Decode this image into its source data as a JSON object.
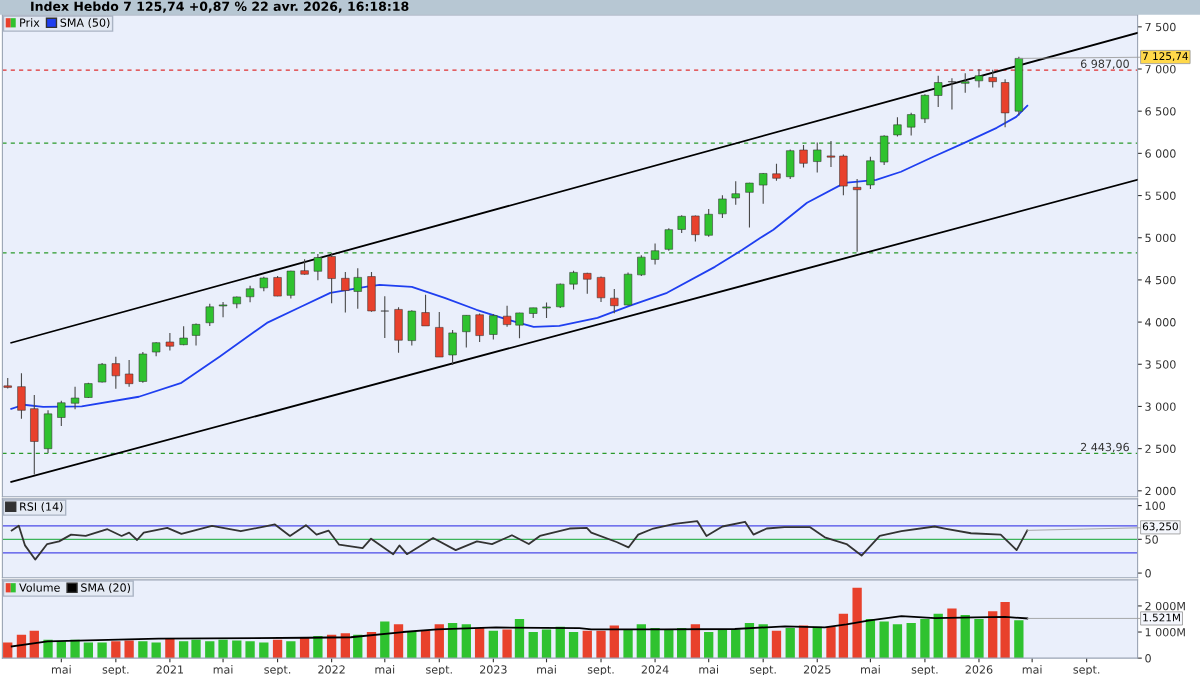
{
  "chart_data": [
    {
      "type": "candlestick",
      "title": "Index Hebdo 7 125,74 +0,87 % 22 avr. 2026, 16:18:18",
      "series": [
        {
          "name": "Prix",
          "type": "candlestick",
          "x": [
            "2020-01",
            "2020-02",
            "2020-03",
            "2020-04",
            "2020-05",
            "2020-06",
            "2020-07",
            "2020-08",
            "2020-09",
            "2020-10",
            "2020-11",
            "2020-12",
            "2021-01",
            "2021-02",
            "2021-03",
            "2021-04",
            "2021-05",
            "2021-06",
            "2021-07",
            "2021-08",
            "2021-09",
            "2021-10",
            "2021-11",
            "2021-12",
            "2022-01",
            "2022-02",
            "2022-03",
            "2022-04",
            "2022-05",
            "2022-06",
            "2022-07",
            "2022-08",
            "2022-09",
            "2022-10",
            "2022-11",
            "2022-12",
            "2023-01",
            "2023-02",
            "2023-03",
            "2023-04",
            "2023-05",
            "2023-06",
            "2023-07",
            "2023-08",
            "2023-09",
            "2023-10",
            "2023-11",
            "2023-12",
            "2024-01",
            "2024-02",
            "2024-03",
            "2024-04",
            "2024-05",
            "2024-06",
            "2024-07",
            "2024-08",
            "2024-09",
            "2024-10",
            "2024-11",
            "2024-12",
            "2025-01",
            "2025-02",
            "2025-03",
            "2025-04",
            "2025-05",
            "2025-06",
            "2025-07",
            "2025-08",
            "2025-09",
            "2025-10",
            "2025-11",
            "2025-12",
            "2026-01",
            "2026-02",
            "2026-03",
            "2026-04"
          ],
          "ohlc": [
            [
              3244,
              3337,
              3214,
              3226
            ],
            [
              3235,
              3394,
              2855,
              2954
            ],
            [
              2974,
              3137,
              2192,
              2585
            ],
            [
              2499,
              2955,
              2447,
              2912
            ],
            [
              2869,
              3068,
              2767,
              3044
            ],
            [
              3038,
              3233,
              2966,
              3100
            ],
            [
              3106,
              3280,
              3101,
              3271
            ],
            [
              3289,
              3514,
              3284,
              3500
            ],
            [
              3508,
              3588,
              3209,
              3363
            ],
            [
              3385,
              3550,
              3234,
              3270
            ],
            [
              3296,
              3646,
              3280,
              3622
            ],
            [
              3645,
              3760,
              3594,
              3756
            ],
            [
              3764,
              3870,
              3662,
              3714
            ],
            [
              3732,
              3950,
              3725,
              3811
            ],
            [
              3842,
              3983,
              3723,
              3973
            ],
            [
              3992,
              4218,
              3955,
              4181
            ],
            [
              4191,
              4238,
              4056,
              4204
            ],
            [
              4216,
              4302,
              4165,
              4298
            ],
            [
              4300,
              4430,
              4234,
              4395
            ],
            [
              4406,
              4538,
              4367,
              4523
            ],
            [
              4529,
              4546,
              4306,
              4308
            ],
            [
              4317,
              4608,
              4279,
              4605
            ],
            [
              4610,
              4744,
              4560,
              4567
            ],
            [
              4602,
              4808,
              4495,
              4766
            ],
            [
              4778,
              4819,
              4223,
              4516
            ],
            [
              4519,
              4595,
              4115,
              4374
            ],
            [
              4363,
              4637,
              4157,
              4530
            ],
            [
              4540,
              4593,
              4124,
              4132
            ],
            [
              4130,
              4307,
              3811,
              4132
            ],
            [
              4150,
              4177,
              3637,
              3785
            ],
            [
              3781,
              4140,
              3722,
              4130
            ],
            [
              4113,
              4325,
              3955,
              3955
            ],
            [
              3937,
              4119,
              3585,
              3586
            ],
            [
              3610,
              3905,
              3492,
              3872
            ],
            [
              3886,
              4080,
              3699,
              4080
            ],
            [
              4087,
              4101,
              3765,
              3840
            ],
            [
              3853,
              4095,
              3794,
              4077
            ],
            [
              4070,
              4195,
              3944,
              3970
            ],
            [
              3964,
              4110,
              3809,
              4109
            ],
            [
              4102,
              4170,
              4049,
              4169
            ],
            [
              4166,
              4231,
              4048,
              4180
            ],
            [
              4181,
              4458,
              4167,
              4450
            ],
            [
              4450,
              4608,
              4385,
              4589
            ],
            [
              4578,
              4584,
              4336,
              4508
            ],
            [
              4530,
              4541,
              4238,
              4288
            ],
            [
              4284,
              4393,
              4104,
              4194
            ],
            [
              4202,
              4587,
              4197,
              4568
            ],
            [
              4560,
              4793,
              4547,
              4770
            ],
            [
              4743,
              4932,
              4683,
              4846
            ],
            [
              4862,
              5111,
              4845,
              5096
            ],
            [
              5098,
              5265,
              5057,
              5254
            ],
            [
              5258,
              5264,
              4954,
              5036
            ],
            [
              5029,
              5342,
              5012,
              5278
            ],
            [
              5283,
              5505,
              5235,
              5460
            ],
            [
              5471,
              5670,
              5391,
              5522
            ],
            [
              5538,
              5651,
              5120,
              5648
            ],
            [
              5624,
              5768,
              5403,
              5762
            ],
            [
              5758,
              5878,
              5675,
              5705
            ],
            [
              5723,
              6045,
              5696,
              6032
            ],
            [
              6040,
              6100,
              5833,
              5882
            ],
            [
              5903,
              6128,
              5774,
              6041
            ],
            [
              5970,
              6147,
              5837,
              5955
            ],
            [
              5968,
              5987,
              5505,
              5612
            ],
            [
              5598,
              5695,
              4835,
              5569
            ],
            [
              5626,
              5960,
              5578,
              5912
            ],
            [
              5897,
              6216,
              5862,
              6205
            ],
            [
              6219,
              6428,
              6201,
              6339
            ],
            [
              6311,
              6482,
              6212,
              6460
            ],
            [
              6409,
              6700,
              6360,
              6688
            ],
            [
              6686,
              6920,
              6550,
              6840
            ],
            [
              6850,
              6890,
              6521,
              6849
            ],
            [
              6830,
              6950,
              6720,
              6850
            ],
            [
              6860,
              7000,
              6780,
              6920
            ],
            [
              6900,
              6990,
              6780,
              6850
            ],
            [
              6840,
              6880,
              6310,
              6480
            ],
            [
              6500,
              7145,
              6450,
              7125.74
            ]
          ],
          "colors": [
            "#e8412c",
            "#e8412c",
            "#e8412c",
            "#2fc22f",
            "#2fc22f",
            "#2fc22f",
            "#2fc22f",
            "#2fc22f",
            "#e8412c",
            "#e8412c",
            "#2fc22f",
            "#2fc22f",
            "#e8412c",
            "#2fc22f",
            "#2fc22f",
            "#2fc22f",
            "#2fc22f",
            "#2fc22f",
            "#2fc22f",
            "#2fc22f",
            "#e8412c",
            "#2fc22f",
            "#e8412c",
            "#2fc22f",
            "#e8412c",
            "#e8412c",
            "#2fc22f",
            "#e8412c",
            "#2fc22f",
            "#e8412c",
            "#2fc22f",
            "#e8412c",
            "#e8412c",
            "#2fc22f",
            "#2fc22f",
            "#e8412c",
            "#2fc22f",
            "#e8412c",
            "#2fc22f",
            "#2fc22f",
            "#2fc22f",
            "#2fc22f",
            "#2fc22f",
            "#e8412c",
            "#e8412c",
            "#e8412c",
            "#2fc22f",
            "#2fc22f",
            "#2fc22f",
            "#2fc22f",
            "#2fc22f",
            "#e8412c",
            "#2fc22f",
            "#2fc22f",
            "#2fc22f",
            "#2fc22f",
            "#2fc22f",
            "#e8412c",
            "#2fc22f",
            "#e8412c",
            "#2fc22f",
            "#e8412c",
            "#e8412c",
            "#e8412c",
            "#2fc22f",
            "#2fc22f",
            "#2fc22f",
            "#2fc22f",
            "#2fc22f",
            "#2fc22f",
            "#e8412c",
            "#2fc22f",
            "#2fc22f",
            "#e8412c",
            "#e8412c",
            "#2fc22f"
          ]
        },
        {
          "name": "SMA (50)",
          "type": "line",
          "color": "#1f3ff0",
          "x": [
            "2020-01-09",
            "2020-02-06",
            "2020-03-21",
            "2020-06-16",
            "2020-10-23",
            "2021-01-27",
            "2021-04-23",
            "2021-08-08",
            "2021-10-19",
            "2021-12-29",
            "2022-03-22",
            "2022-04-19",
            "2022-07-01",
            "2022-09-13",
            "2022-11-24",
            "2023-02-04",
            "2023-04-02",
            "2023-05-30",
            "2023-08-24",
            "2023-11-04",
            "2024-01-28",
            "2024-05-15",
            "2024-07-16",
            "2024-08-26",
            "2024-09-24",
            "2024-12-09",
            "2025-03-04",
            "2025-05-14",
            "2025-07-09",
            "2025-09-20",
            "2025-11-29",
            "2026-02-10",
            "2026-03-26",
            "2026-04-20"
          ],
          "values": [
            2972,
            3020,
            2996,
            3000,
            3115,
            3280,
            3590,
            3990,
            4170,
            4347,
            4420,
            4442,
            4418,
            4288,
            4146,
            4027,
            3944,
            3956,
            4050,
            4193,
            4347,
            4655,
            4857,
            4999,
            5094,
            5414,
            5650,
            5687,
            5782,
            5960,
            6125,
            6303,
            6433,
            6564
          ]
        },
        {
          "type": "line",
          "color": "#000000",
          "x": [
            "2020-01-09",
            "2026-12-25"
          ],
          "values": [
            3755,
            7429
          ]
        },
        {
          "type": "line",
          "color": "#000000",
          "x": [
            "2020-01-09",
            "2026-12-25"
          ],
          "values": [
            2107,
            5687
          ]
        }
      ],
      "xlim": [
        "2019-12-20",
        "2026-12-25"
      ],
      "ylim": [
        1929,
        7642
      ],
      "yticks": [
        {
          "value": 2000,
          "label": "2 000"
        },
        {
          "value": 2500,
          "label": "2 500"
        },
        {
          "value": 3000,
          "label": "3 000"
        },
        {
          "value": 3500,
          "label": "3 500"
        },
        {
          "value": 4000,
          "label": "4 000"
        },
        {
          "value": 4500,
          "label": "4 500"
        },
        {
          "value": 5000,
          "label": "5 000"
        },
        {
          "value": 5500,
          "label": "5 500"
        },
        {
          "value": 6000,
          "label": "6 000"
        },
        {
          "value": 6500,
          "label": "6 500"
        },
        {
          "value": 7000,
          "label": "7 000"
        },
        {
          "value": 7500,
          "label": "7 500"
        }
      ],
      "ref_lines": [
        {
          "axis": "y",
          "value": 6987,
          "label": "6 987,00",
          "color": "#e03030",
          "line_style": "dashed"
        },
        {
          "axis": "y",
          "value": 6121,
          "label": null,
          "color": "#2a9a2a",
          "line_style": "dashed"
        },
        {
          "axis": "y",
          "value": 4821,
          "label": null,
          "color": "#2a9a2a",
          "line_style": "dashed"
        },
        {
          "axis": "y",
          "value": 2443.96,
          "label": "2 443,96",
          "color": "#2a9a2a",
          "line_style": "dashed"
        }
      ],
      "annotations": [
        {
          "text": "7 125,74",
          "x": "2026-04",
          "y": 7125.74
        }
      ],
      "legend": "top left",
      "tick_labels": "y"
    },
    {
      "type": "line",
      "series": [
        {
          "name": "RSI (14)",
          "color": "#333333",
          "x": [
            "2020-01-10",
            "2020-01-26",
            "2020-02-09",
            "2020-03-03",
            "2020-03-30",
            "2020-04-26",
            "2020-05-23",
            "2020-06-25",
            "2020-08-13",
            "2020-09-14",
            "2020-10-01",
            "2020-10-19",
            "2020-11-03",
            "2020-12-26",
            "2021-01-27",
            "2021-04-06",
            "2021-06-10",
            "2021-08-10",
            "2021-08-26",
            "2021-09-29",
            "2021-11-04",
            "2021-11-28",
            "2021-12-25",
            "2022-01-18",
            "2022-03-12",
            "2022-03-31",
            "2022-05-20",
            "2022-06-03",
            "2022-06-20",
            "2022-08-18",
            "2022-10-08",
            "2022-11-25",
            "2022-12-29",
            "2023-02-12",
            "2023-03-22",
            "2023-04-16",
            "2023-06-22",
            "2023-07-31",
            "2023-08-10",
            "2023-10-06",
            "2023-11-02",
            "2023-11-24",
            "2023-12-28",
            "2024-02-14",
            "2024-04-05",
            "2024-04-26",
            "2024-06-01",
            "2024-07-22",
            "2024-08-10",
            "2024-09-09",
            "2024-10-19",
            "2024-12-16",
            "2025-01-18",
            "2025-03-08",
            "2025-04-11",
            "2025-05-22",
            "2025-07-10",
            "2025-09-23",
            "2025-10-16",
            "2025-12-14",
            "2026-02-19",
            "2026-03-27",
            "2026-04-20"
          ],
          "values": [
            63,
            70,
            41,
            20,
            43,
            47,
            57,
            55,
            65,
            55,
            60,
            49,
            60,
            67,
            58,
            70,
            62,
            70,
            72,
            55,
            71,
            57,
            63,
            42,
            37,
            51,
            28,
            41,
            28,
            52,
            34,
            47,
            43,
            56,
            43,
            55,
            66,
            67,
            60,
            46,
            38,
            57,
            66,
            73,
            77,
            55,
            69,
            76,
            57,
            66,
            68,
            68,
            53,
            43,
            26,
            55,
            62,
            69,
            66,
            59,
            57,
            34,
            63.25
          ]
        }
      ],
      "xlim": [
        "2019-12-20",
        "2026-12-25"
      ],
      "ylim": [
        -7,
        110
      ],
      "yticks": [
        0,
        50,
        100
      ],
      "ref_lines": [
        {
          "axis": "y",
          "value": 70,
          "label": null,
          "color": "#4a4ae8",
          "line_style": "solid"
        },
        {
          "axis": "y",
          "value": 50,
          "label": null,
          "color": "#3cb45a",
          "line_style": "solid"
        },
        {
          "axis": "y",
          "value": 30,
          "label": null,
          "color": "#4a4ae8",
          "line_style": "solid"
        }
      ],
      "annotations": [
        {
          "text": "63,250",
          "x": "2026-04-20",
          "y": 63.25
        }
      ],
      "legend": "top left",
      "tick_labels": "y"
    },
    {
      "type": "bar",
      "series": [
        {
          "name": "Volume",
          "type": "bar",
          "x": [
            "2020-01",
            "2020-02",
            "2020-03",
            "2020-04",
            "2020-05",
            "2020-06",
            "2020-07",
            "2020-08",
            "2020-09",
            "2020-10",
            "2020-11",
            "2020-12",
            "2021-01",
            "2021-02",
            "2021-03",
            "2021-04",
            "2021-05",
            "2021-06",
            "2021-07",
            "2021-08",
            "2021-09",
            "2021-10",
            "2021-11",
            "2021-12",
            "2022-01",
            "2022-02",
            "2022-03",
            "2022-04",
            "2022-05",
            "2022-06",
            "2022-07",
            "2022-08",
            "2022-09",
            "2022-10",
            "2022-11",
            "2022-12",
            "2023-01",
            "2023-02",
            "2023-03",
            "2023-04",
            "2023-05",
            "2023-06",
            "2023-07",
            "2023-08",
            "2023-09",
            "2023-10",
            "2023-11",
            "2023-12",
            "2024-01",
            "2024-02",
            "2024-03",
            "2024-04",
            "2024-05",
            "2024-06",
            "2024-07",
            "2024-08",
            "2024-09",
            "2024-10",
            "2024-11",
            "2024-12",
            "2025-01",
            "2025-02",
            "2025-03",
            "2025-04",
            "2025-05",
            "2025-06",
            "2025-07",
            "2025-08",
            "2025-09",
            "2025-10",
            "2025-11",
            "2025-12",
            "2026-01",
            "2026-02",
            "2026-03",
            "2026-04"
          ],
          "values": [
            600,
            900,
            1050,
            700,
            650,
            700,
            600,
            600,
            650,
            680,
            650,
            600,
            750,
            650,
            700,
            650,
            700,
            680,
            650,
            600,
            700,
            650,
            800,
            850,
            900,
            950,
            900,
            1000,
            1400,
            1300,
            1000,
            1050,
            1300,
            1350,
            1300,
            1150,
            1050,
            1100,
            1500,
            1000,
            1100,
            1200,
            1000,
            1050,
            1050,
            1250,
            1100,
            1300,
            1150,
            1100,
            1150,
            1300,
            1000,
            1100,
            1100,
            1350,
            1300,
            1050,
            1150,
            1250,
            1200,
            1200,
            1700,
            2700,
            1500,
            1400,
            1300,
            1350,
            1500,
            1700,
            1900,
            1650,
            1500,
            1800,
            2150,
            1450
          ],
          "colors": [
            "#e8412c",
            "#e8412c",
            "#e8412c",
            "#2fc22f",
            "#2fc22f",
            "#2fc22f",
            "#2fc22f",
            "#2fc22f",
            "#e8412c",
            "#e8412c",
            "#2fc22f",
            "#2fc22f",
            "#e8412c",
            "#2fc22f",
            "#2fc22f",
            "#2fc22f",
            "#2fc22f",
            "#2fc22f",
            "#2fc22f",
            "#2fc22f",
            "#e8412c",
            "#2fc22f",
            "#e8412c",
            "#2fc22f",
            "#e8412c",
            "#e8412c",
            "#2fc22f",
            "#e8412c",
            "#2fc22f",
            "#e8412c",
            "#2fc22f",
            "#e8412c",
            "#e8412c",
            "#2fc22f",
            "#2fc22f",
            "#e8412c",
            "#2fc22f",
            "#e8412c",
            "#2fc22f",
            "#2fc22f",
            "#2fc22f",
            "#2fc22f",
            "#2fc22f",
            "#e8412c",
            "#e8412c",
            "#e8412c",
            "#2fc22f",
            "#2fc22f",
            "#2fc22f",
            "#2fc22f",
            "#2fc22f",
            "#e8412c",
            "#2fc22f",
            "#2fc22f",
            "#2fc22f",
            "#2fc22f",
            "#2fc22f",
            "#e8412c",
            "#2fc22f",
            "#e8412c",
            "#2fc22f",
            "#e8412c",
            "#e8412c",
            "#e8412c",
            "#2fc22f",
            "#2fc22f",
            "#2fc22f",
            "#2fc22f",
            "#2fc22f",
            "#2fc22f",
            "#e8412c",
            "#2fc22f",
            "#2fc22f",
            "#e8412c",
            "#e8412c",
            "#2fc22f"
          ]
        },
        {
          "name": "SMA (20)",
          "type": "line",
          "color": "#000000",
          "x": [
            "2020-01-10",
            "2020-03-31",
            "2020-12-06",
            "2021-11-05",
            "2022-02-13",
            "2022-06-11",
            "2022-08-27",
            "2023-01-07",
            "2023-07-14",
            "2023-08-10",
            "2024-01-22",
            "2024-06-29",
            "2024-10-20",
            "2025-01-18",
            "2025-03-08",
            "2025-04-26",
            "2025-07-10",
            "2025-09-24",
            "2025-12-22",
            "2026-03-01",
            "2026-04-20"
          ],
          "values": [
            450,
            640,
            750,
            780,
            800,
            1000,
            1100,
            1175,
            1150,
            1100,
            1100,
            1115,
            1220,
            1175,
            1290,
            1435,
            1610,
            1535,
            1565,
            1580,
            1521
          ]
        }
      ],
      "xlim": [
        "2019-12-20",
        "2026-12-25"
      ],
      "ylim": [
        0,
        3000
      ],
      "yticks": [
        {
          "value": 0,
          "label": "0"
        },
        {
          "value": 1000,
          "label": "1 000M"
        },
        {
          "value": 2000,
          "label": "2 000M"
        }
      ],
      "xticks": [
        {
          "value": "2020-05-01",
          "label": "mai"
        },
        {
          "value": "2020-09-01",
          "label": "sept."
        },
        {
          "value": "2021-01-01",
          "label": "2021"
        },
        {
          "value": "2021-05-01",
          "label": "mai"
        },
        {
          "value": "2021-09-01",
          "label": "sept."
        },
        {
          "value": "2022-01-01",
          "label": "2022"
        },
        {
          "value": "2022-05-01",
          "label": "mai"
        },
        {
          "value": "2022-09-01",
          "label": "sept."
        },
        {
          "value": "2023-01-01",
          "label": "2023"
        },
        {
          "value": "2023-05-01",
          "label": "mai"
        },
        {
          "value": "2023-09-01",
          "label": "sept."
        },
        {
          "value": "2024-01-01",
          "label": "2024"
        },
        {
          "value": "2024-05-01",
          "label": "mai"
        },
        {
          "value": "2024-09-01",
          "label": "sept."
        },
        {
          "value": "2025-01-01",
          "label": "2025"
        },
        {
          "value": "2025-05-01",
          "label": "mai"
        },
        {
          "value": "2025-09-01",
          "label": "sept."
        },
        {
          "value": "2026-01-01",
          "label": "2026"
        },
        {
          "value": "2026-05-01",
          "label": "mai"
        },
        {
          "value": "2026-09-01",
          "label": "sept."
        }
      ],
      "annotations": [
        {
          "text": "1.521M",
          "x": "2026-04-20",
          "y": 1521
        }
      ],
      "legend": "top left"
    }
  ]
}
